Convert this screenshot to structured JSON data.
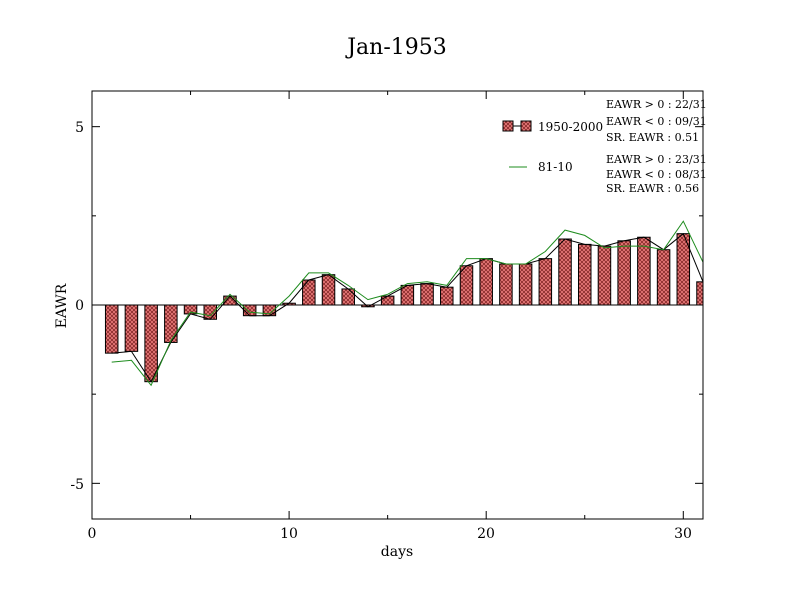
{
  "chart_data": {
    "type": "bar",
    "title": "Jan-1953",
    "xlabel": "days",
    "ylabel": "EAWR",
    "xlim": [
      0,
      31
    ],
    "ylim": [
      -6,
      6
    ],
    "x_ticks": [
      "0",
      "10",
      "20",
      "30"
    ],
    "y_ticks": [
      "5",
      "0",
      "-5"
    ],
    "grid": false,
    "legend_position": "top-right",
    "colors": {
      "bar_fill": "#e87a7a",
      "bar_hatch": "#7a1f1f",
      "line_1950_2000": "#000000",
      "line_81_10": "#1e8c1e"
    },
    "series": [
      {
        "name": "1950-2000",
        "kind": "bar",
        "x": [
          1,
          2,
          3,
          4,
          5,
          6,
          7,
          8,
          9,
          10,
          11,
          12,
          13,
          14,
          15,
          16,
          17,
          18,
          19,
          20,
          21,
          22,
          23,
          24,
          25,
          26,
          27,
          28,
          29,
          30,
          31
        ],
        "values": [
          -1.35,
          -1.3,
          -2.15,
          -1.05,
          -0.25,
          -0.4,
          0.25,
          -0.3,
          -0.3,
          0.05,
          0.7,
          0.85,
          0.45,
          -0.05,
          0.25,
          0.55,
          0.6,
          0.5,
          1.1,
          1.3,
          1.15,
          1.15,
          1.3,
          1.85,
          1.7,
          1.65,
          1.8,
          1.9,
          1.55,
          2.0,
          0.65
        ]
      },
      {
        "name": "81-10",
        "kind": "line",
        "x": [
          1,
          2,
          3,
          4,
          5,
          6,
          7,
          8,
          9,
          10,
          11,
          12,
          13,
          14,
          15,
          16,
          17,
          18,
          19,
          20,
          21,
          22,
          23,
          24,
          25,
          26,
          27,
          28,
          29,
          30,
          31
        ],
        "values": [
          -1.6,
          -1.55,
          -2.25,
          -1.0,
          -0.2,
          -0.3,
          0.3,
          -0.2,
          -0.25,
          0.25,
          0.9,
          0.9,
          0.55,
          0.15,
          0.3,
          0.6,
          0.65,
          0.55,
          1.3,
          1.3,
          1.15,
          1.15,
          1.5,
          2.1,
          1.95,
          1.6,
          1.65,
          1.65,
          1.55,
          2.35,
          1.2
        ]
      }
    ],
    "legend_entries": [
      {
        "label": "1950-2000",
        "stats": [
          "EAWR > 0 : 22/31",
          "EAWR < 0 : 09/31",
          "SR. EAWR :  0.51"
        ]
      },
      {
        "label": "81-10",
        "stats": [
          "EAWR > 0 : 23/31",
          "EAWR < 0 : 08/31",
          "SR. EAWR :  0.56"
        ]
      }
    ]
  }
}
